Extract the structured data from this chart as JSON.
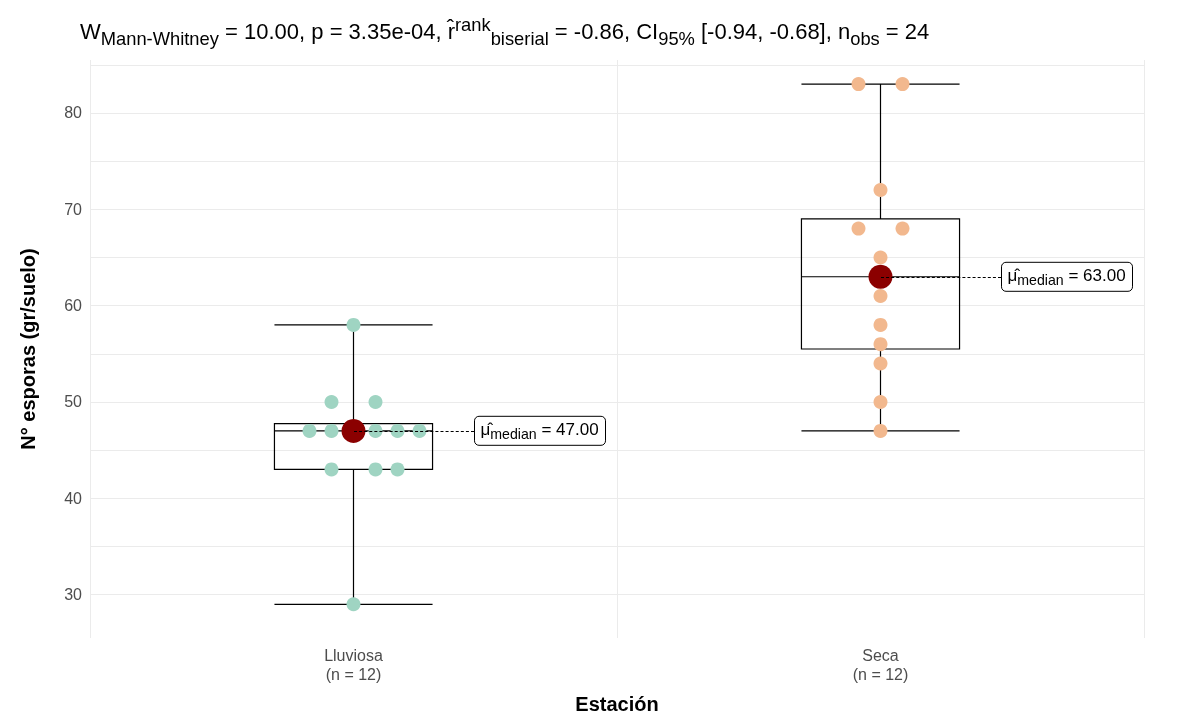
{
  "chart_data": {
    "type": "box",
    "title": "W$_{Mann-Whitney}$ = 10.00, p = 3.35e-04, r̂$^{rank}$$_{biserial}$ = -0.86, CI$_{95%}$ [-0.94, -0.68], n$_{obs}$ = 24",
    "xlabel": "Estación",
    "ylabel": "N° esporas (gr/suelo)",
    "categories": [
      "Lluviosa\n(n = 12)",
      "Seca\n(n = 12)"
    ],
    "boxes": [
      {
        "low": 29,
        "q1": 43,
        "median": 47,
        "q3": 47.75,
        "high": 58
      },
      {
        "low": 47,
        "q1": 55.5,
        "median": 63,
        "q3": 69,
        "high": 83
      }
    ],
    "series": [
      {
        "type": "scatter",
        "color": "#9fd4c2",
        "x": [
          "Lluviosa\n(n = 12)",
          "Lluviosa\n(n = 12)",
          "Lluviosa\n(n = 12)",
          "Lluviosa\n(n = 12)",
          "Lluviosa\n(n = 12)",
          "Lluviosa\n(n = 12)",
          "Lluviosa\n(n = 12)",
          "Lluviosa\n(n = 12)",
          "Lluviosa\n(n = 12)",
          "Lluviosa\n(n = 12)",
          "Lluviosa\n(n = 12)",
          "Lluviosa\n(n = 12)"
        ],
        "values": [
          58,
          50,
          50,
          47,
          47,
          47,
          47,
          47,
          43,
          43,
          43,
          29
        ]
      },
      {
        "type": "scatter",
        "color": "#f2b88e",
        "x": [
          "Seca\n(n = 12)",
          "Seca\n(n = 12)",
          "Seca\n(n = 12)",
          "Seca\n(n = 12)",
          "Seca\n(n = 12)",
          "Seca\n(n = 12)",
          "Seca\n(n = 12)",
          "Seca\n(n = 12)",
          "Seca\n(n = 12)",
          "Seca\n(n = 12)",
          "Seca\n(n = 12)",
          "Seca\n(n = 12)"
        ],
        "values": [
          83,
          83,
          72,
          68,
          68,
          65,
          61,
          58,
          56,
          54,
          50,
          47
        ]
      },
      {
        "type": "scatter",
        "color": "#8b0000",
        "x": [
          "Lluviosa\n(n = 12)",
          "Seca\n(n = 12)"
        ],
        "values": [
          47,
          63
        ]
      }
    ],
    "annotations": [
      {
        "text": "μ̂$_{median}$ = 47.00",
        "x": "Lluviosa\n(n = 12)",
        "y": 47
      },
      {
        "text": "μ̂$_{median}$ = 63.00",
        "x": "Seca\n(n = 12)",
        "y": 63
      }
    ],
    "ylim": [
      25.5,
      85.5
    ],
    "yticks": [
      30,
      {
        "value": 35,
        "label": null
      },
      40,
      {
        "value": 45,
        "label": null
      },
      50,
      {
        "value": 55,
        "label": null
      },
      60,
      {
        "value": 65,
        "label": null
      },
      70,
      {
        "value": 75,
        "label": null
      },
      80,
      {
        "value": 85,
        "label": null
      }
    ],
    "grid": true,
    "marker": "circle"
  }
}
